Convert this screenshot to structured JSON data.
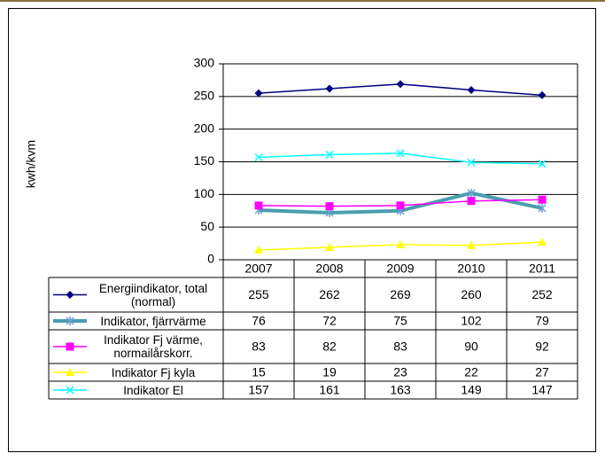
{
  "chart_data": {
    "type": "line",
    "y_label": "kwh/kvm",
    "categories": [
      "2007",
      "2008",
      "2009",
      "2010",
      "2011"
    ],
    "ylim": [
      0,
      300
    ],
    "yticks": [
      0,
      50,
      100,
      150,
      200,
      250,
      300
    ],
    "grid": true,
    "series": [
      {
        "name": "Energiindikator, total (normal)",
        "color": "#000080",
        "marker": "diamond",
        "values": [
          255,
          262,
          269,
          260,
          252
        ]
      },
      {
        "name": "Indikator, fjärrvärme",
        "color": "#4a9eb0",
        "marker": "star",
        "values": [
          76,
          72,
          75,
          102,
          79
        ]
      },
      {
        "name": "Indikator Fj värme, normailårskorr.",
        "color": "#ff00ff",
        "marker": "square",
        "values": [
          83,
          82,
          83,
          90,
          92
        ]
      },
      {
        "name": "Indikator Fj kyla",
        "color": "#ffff00",
        "marker": "triangle",
        "values": [
          15,
          19,
          23,
          22,
          27
        ]
      },
      {
        "name": "Indikator El",
        "color": "#00ffff",
        "marker": "x",
        "values": [
          157,
          161,
          163,
          149,
          147
        ]
      }
    ]
  }
}
